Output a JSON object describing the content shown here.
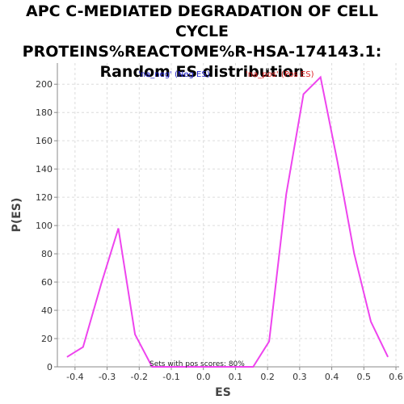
{
  "chart_data": {
    "type": "line",
    "title_lines": [
      "APC C-MEDIATED DEGRADATION OF CELL CYCLE",
      "PROTEINS%REACTOME%R-HSA-174143.1:",
      "Random ES distribution"
    ],
    "xlabel": "ES",
    "ylabel": "P(ES)",
    "xlim": [
      -0.455,
      0.61
    ],
    "ylim": [
      0,
      215
    ],
    "xticks": [
      "-0.4",
      "-0.3",
      "-0.2",
      "-0.1",
      "0.0",
      "0.1",
      "0.2",
      "0.3",
      "0.4",
      "0.5",
      "0.6"
    ],
    "xtick_values": [
      -0.4,
      -0.3,
      -0.2,
      -0.1,
      0.0,
      0.1,
      0.2,
      0.3,
      0.4,
      0.5,
      0.6
    ],
    "yticks": [
      "0",
      "20",
      "40",
      "60",
      "80",
      "100",
      "120",
      "140",
      "160",
      "180",
      "200"
    ],
    "ytick_values": [
      0,
      20,
      40,
      60,
      80,
      100,
      120,
      140,
      160,
      180,
      200
    ],
    "grid": true,
    "legend": [
      {
        "label": "'na_neg' (Neg ES)",
        "color": "#2222cc"
      },
      {
        "label": "'na_pos' (Pos ES)",
        "color": "#dd2222"
      }
    ],
    "legend_placement": "top",
    "annotation": "Sets with pos scores: 80%",
    "series_color": "#ee44ee",
    "series": [
      {
        "x": [
          -0.425,
          -0.375,
          -0.318,
          -0.265,
          -0.213,
          -0.16,
          -0.105,
          -0.05,
          0.0,
          0.05,
          0.105,
          0.155,
          0.205,
          0.258,
          0.312,
          0.365,
          0.418,
          0.47,
          0.522,
          0.575
        ],
        "y": [
          7,
          14,
          59,
          98,
          23,
          0,
          0,
          0,
          0,
          0,
          0,
          0,
          18,
          122,
          193,
          205,
          145,
          80,
          32,
          7
        ]
      }
    ]
  }
}
